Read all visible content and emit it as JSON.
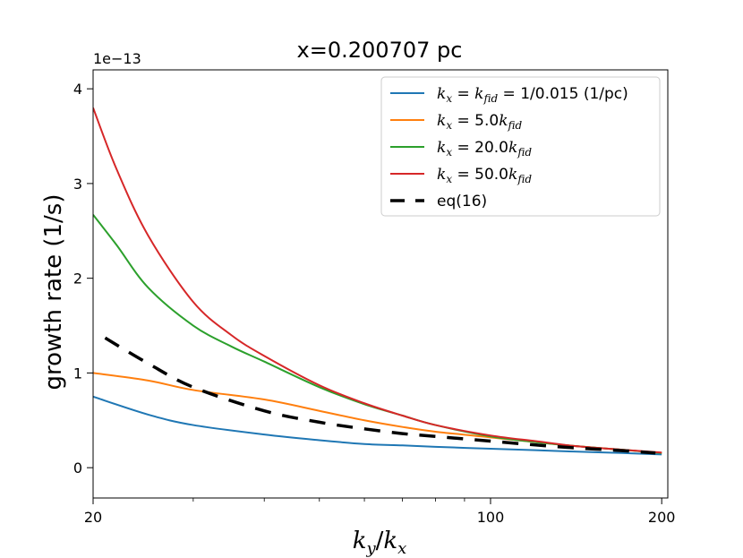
{
  "chart_data": {
    "type": "line",
    "title": "x=0.200707 pc",
    "xlabel": {
      "main": "k",
      "sub": "y",
      "sep": "/",
      "main2": "k",
      "sub2": "x"
    },
    "ylabel": "growth rate (1/s)",
    "offset_label": "1e−13",
    "xscale": "log",
    "xlim": [
      20,
      205
    ],
    "ylim": [
      -0.32,
      4.2
    ],
    "xticks": [
      {
        "value": 20,
        "label": "20"
      },
      {
        "value": 100,
        "label": "100"
      },
      {
        "value": 200,
        "label": "200"
      }
    ],
    "xminorticks": [
      30,
      40,
      50,
      60,
      70,
      80,
      90
    ],
    "yticks": [
      {
        "value": 0,
        "label": "0"
      },
      {
        "value": 1,
        "label": "1"
      },
      {
        "value": 2,
        "label": "2"
      },
      {
        "value": 3,
        "label": "3"
      },
      {
        "value": 4,
        "label": "4"
      }
    ],
    "legend_position": "top-right",
    "series": [
      {
        "name": "kx = kfid = 1/0.015 (1/pc)",
        "legend": {
          "pre": "k",
          "sub1": "x",
          "mid": " = ",
          "k2": "k",
          "sub2": "fid",
          "post": " = 1/0.015 (1/pc)"
        },
        "color": "#1f77b4",
        "style": "solid",
        "x": [
          20,
          25,
          30,
          40,
          50,
          60,
          70,
          80,
          100,
          120,
          140,
          170,
          200
        ],
        "y": [
          0.75,
          0.56,
          0.45,
          0.35,
          0.29,
          0.25,
          0.235,
          0.22,
          0.2,
          0.185,
          0.17,
          0.155,
          0.14
        ]
      },
      {
        "name": "kx = 5.0kfid",
        "legend": {
          "pre": "k",
          "sub1": "x",
          "mid": " = 5.0",
          "k2": "k",
          "sub2": "fid",
          "post": ""
        },
        "color": "#ff7f0e",
        "style": "solid",
        "x": [
          20,
          25,
          30,
          40,
          50,
          60,
          70,
          80,
          100,
          120,
          140,
          170,
          200
        ],
        "y": [
          1.0,
          0.92,
          0.82,
          0.72,
          0.6,
          0.5,
          0.43,
          0.38,
          0.32,
          0.27,
          0.23,
          0.19,
          0.155
        ]
      },
      {
        "name": "kx = 20.0kfid",
        "legend": {
          "pre": "k",
          "sub1": "x",
          "mid": " = 20.0",
          "k2": "k",
          "sub2": "fid",
          "post": ""
        },
        "color": "#2ca02c",
        "style": "solid",
        "x": [
          20,
          22,
          25,
          30,
          35,
          40,
          50,
          60,
          70,
          80,
          100,
          120,
          140,
          170,
          200
        ],
        "y": [
          2.67,
          2.35,
          1.9,
          1.5,
          1.28,
          1.12,
          0.85,
          0.67,
          0.55,
          0.45,
          0.33,
          0.27,
          0.23,
          0.19,
          0.155
        ]
      },
      {
        "name": "kx = 50.0kfid",
        "legend": {
          "pre": "k",
          "sub1": "x",
          "mid": " = 50.0",
          "k2": "k",
          "sub2": "fid",
          "post": ""
        },
        "color": "#d62728",
        "style": "solid",
        "x": [
          20,
          22,
          25,
          30,
          35,
          40,
          50,
          60,
          70,
          80,
          100,
          120,
          140,
          170,
          200
        ],
        "y": [
          3.8,
          3.15,
          2.45,
          1.75,
          1.4,
          1.18,
          0.87,
          0.68,
          0.55,
          0.45,
          0.34,
          0.28,
          0.23,
          0.19,
          0.16
        ]
      },
      {
        "name": "eq(16)",
        "legend": {
          "pre": "eq(16)",
          "sub1": "",
          "mid": "",
          "k2": "",
          "sub2": "",
          "post": ""
        },
        "color": "#000000",
        "style": "dashed",
        "x": [
          21,
          25,
          30,
          40,
          50,
          60,
          70,
          80,
          100,
          120,
          140,
          170,
          195
        ],
        "y": [
          1.37,
          1.1,
          0.85,
          0.6,
          0.48,
          0.41,
          0.36,
          0.33,
          0.28,
          0.24,
          0.21,
          0.18,
          0.155
        ]
      }
    ]
  }
}
